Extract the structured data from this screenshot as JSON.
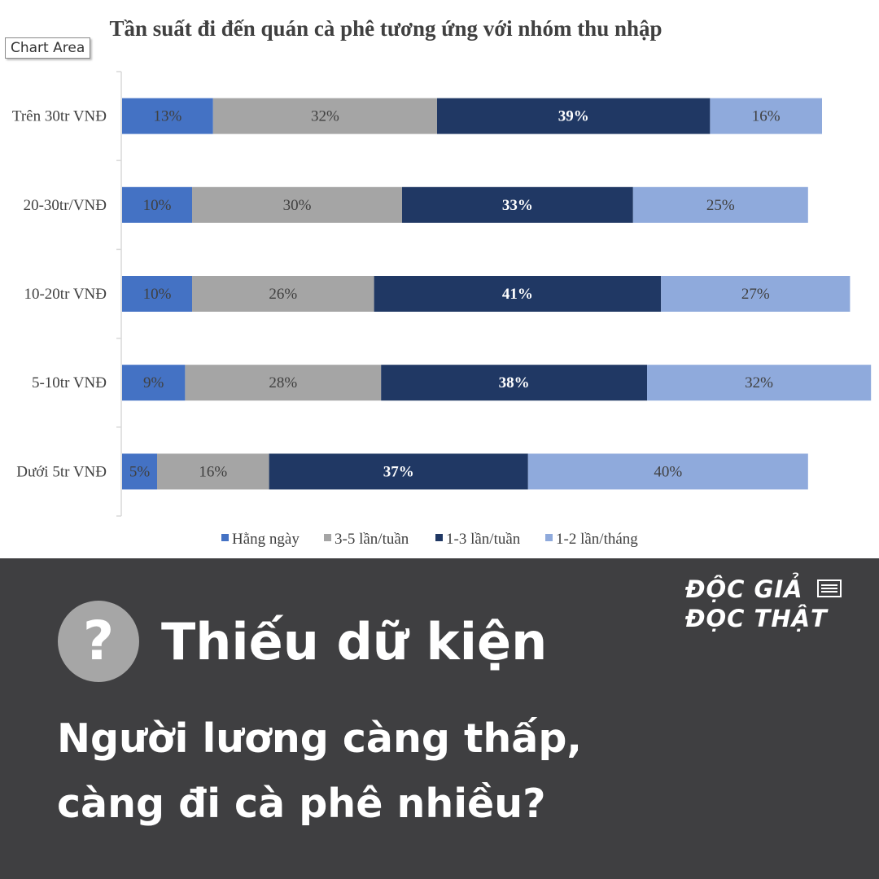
{
  "chart_data": {
    "type": "bar",
    "orientation": "horizontal",
    "stacked": true,
    "title": "Tần suất đi đến quán cà phê tương ứng với nhóm thu nhập",
    "categories": [
      "Trên 30tr VNĐ",
      "20-30tr/VNĐ",
      "10-20tr VNĐ",
      "5-10tr VNĐ",
      "Dưới 5tr VNĐ"
    ],
    "series": [
      {
        "name": "Hằng ngày",
        "color": "#4472c4",
        "values": [
          13,
          10,
          10,
          9,
          5
        ],
        "labels": [
          "13%",
          "10%",
          "10%",
          "9%",
          "5%"
        ]
      },
      {
        "name": "3-5 lần/tuần",
        "color": "#a5a5a5",
        "values": [
          32,
          30,
          26,
          28,
          16
        ],
        "labels": [
          "32%",
          "30%",
          "26%",
          "28%",
          "16%"
        ]
      },
      {
        "name": "1-3 lần/tuần",
        "color": "#203864",
        "values": [
          39,
          33,
          41,
          38,
          37
        ],
        "labels": [
          "39%",
          "33%",
          "41%",
          "38%",
          "37%"
        ]
      },
      {
        "name": "1-2 lần/tháng",
        "color": "#8faadc",
        "values": [
          16,
          25,
          27,
          32,
          40
        ],
        "labels": [
          "16%",
          "25%",
          "27%",
          "32%",
          "40%"
        ]
      }
    ],
    "legend_position": "bottom",
    "grid": false
  },
  "ui": {
    "chart_area_tooltip": "Chart Area"
  },
  "footer": {
    "verdict_icon": "?",
    "verdict": "Thiếu dữ kiện",
    "claim_line1": "Người lương càng thấp,",
    "claim_line2": "càng đi cà phê nhiều?",
    "brand_line1": "ĐỘC GIẢ",
    "brand_line2": "ĐỌC THẬT",
    "brand_icon": "newspaper-icon"
  }
}
